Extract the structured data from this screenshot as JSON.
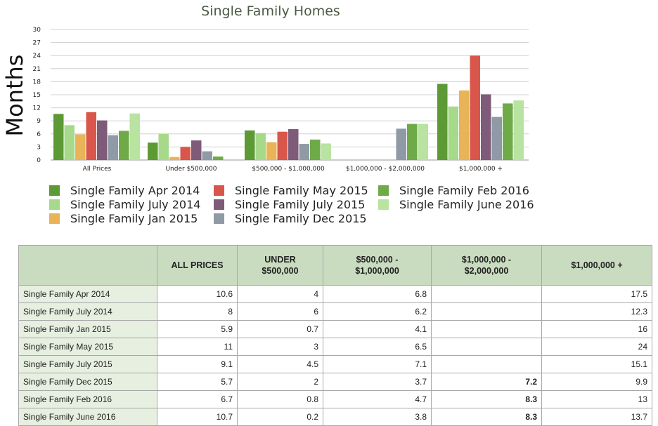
{
  "colors": {
    "Single Family Apr 2014": "#5d9a36",
    "Single Family July 2014": "#a6d98a",
    "Single Family Jan 2015": "#e8b457",
    "Single Family May 2015": "#d9564a",
    "Single Family July 2015": "#7f5b7a",
    "Single Family Dec 2015": "#8f9aa6",
    "Single Family Feb 2016": "#6faa48",
    "Single Family June 2016": "#b8e3a0"
  },
  "chart_data": {
    "type": "bar",
    "title": "Single Family Homes",
    "ylabel": "Months",
    "xlabel": "",
    "ylim": [
      0,
      30
    ],
    "yticks": [
      "0",
      "3",
      "6",
      "9",
      "12",
      "15",
      "18",
      "21",
      "24",
      "27",
      "30"
    ],
    "grid": true,
    "legend_position": "bottom",
    "categories": [
      "All Prices",
      "Under $500,000",
      "$500,000 - $1,000,000",
      "$1,000,000 - $2,000,000",
      "$1,000,000 +"
    ],
    "series": [
      {
        "name": "Single Family Apr 2014",
        "values": [
          10.6,
          4,
          6.8,
          null,
          17.5
        ]
      },
      {
        "name": "Single Family July 2014",
        "values": [
          8,
          6,
          6.2,
          null,
          12.3
        ]
      },
      {
        "name": "Single Family Jan 2015",
        "values": [
          5.9,
          0.7,
          4.1,
          null,
          16
        ]
      },
      {
        "name": "Single Family May 2015",
        "values": [
          11,
          3,
          6.5,
          null,
          24
        ]
      },
      {
        "name": "Single Family July 2015",
        "values": [
          9.1,
          4.5,
          7.1,
          null,
          15.1
        ]
      },
      {
        "name": "Single Family Dec 2015",
        "values": [
          5.7,
          2,
          3.7,
          7.2,
          9.9
        ]
      },
      {
        "name": "Single Family Feb 2016",
        "values": [
          6.7,
          0.8,
          4.7,
          8.3,
          13
        ]
      },
      {
        "name": "Single Family June 2016",
        "values": [
          10.7,
          0.2,
          3.8,
          8.3,
          13.7
        ]
      }
    ]
  },
  "legend_order": [
    "Single Family Apr 2014",
    "Single Family July 2014",
    "Single Family Jan 2015",
    "Single Family May 2015",
    "Single Family July 2015",
    "Single Family Dec 2015",
    "Single Family Feb 2016",
    "Single Family June 2016"
  ],
  "table": {
    "headers": [
      {
        "line1": "ALL PRICES",
        "line2": ""
      },
      {
        "line1": "UNDER",
        "line2": "$500,000"
      },
      {
        "line1": "$500,000 -",
        "line2": "$1,000,000"
      },
      {
        "line1": "$1,000,000 -",
        "line2": "$2,000,000"
      },
      {
        "line1": "$1,000,000 +",
        "line2": ""
      }
    ],
    "rows": [
      {
        "label": "Single Family Apr 2014",
        "cells": [
          "10.6",
          "4",
          "6.8",
          "",
          "17.5"
        ]
      },
      {
        "label": "Single Family July 2014",
        "cells": [
          "8",
          "6",
          "6.2",
          "",
          "12.3"
        ]
      },
      {
        "label": "Single Family Jan 2015",
        "cells": [
          "5.9",
          "0.7",
          "4.1",
          "",
          "16"
        ]
      },
      {
        "label": "Single Family May 2015",
        "cells": [
          "11",
          "3",
          "6.5",
          "",
          "24"
        ]
      },
      {
        "label": "Single Family July 2015",
        "cells": [
          "9.1",
          "4.5",
          "7.1",
          "",
          "15.1"
        ]
      },
      {
        "label": "Single Family Dec 2015",
        "cells": [
          "5.7",
          "2",
          "3.7",
          "7.2",
          "9.9"
        ]
      },
      {
        "label": "Single Family Feb 2016",
        "cells": [
          "6.7",
          "0.8",
          "4.7",
          "8.3",
          "13"
        ]
      },
      {
        "label": "Single Family June 2016",
        "cells": [
          "10.7",
          "0.2",
          "3.8",
          "8.3",
          "13.7"
        ]
      }
    ]
  }
}
